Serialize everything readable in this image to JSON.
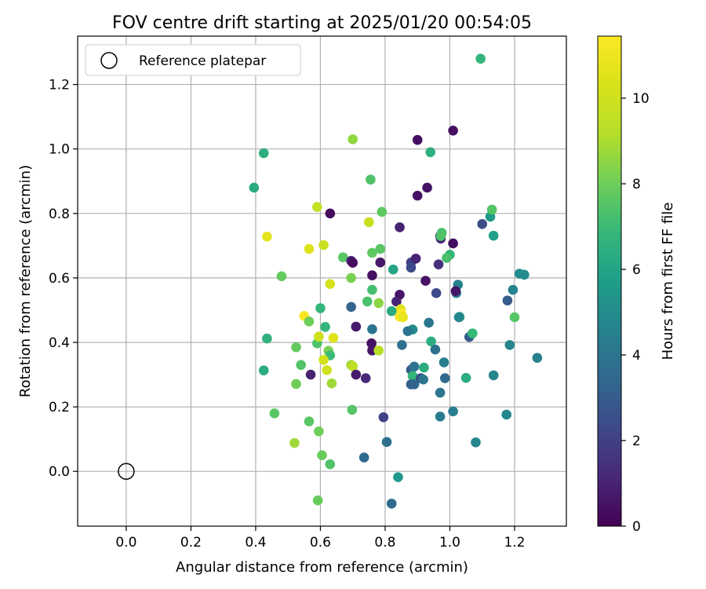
{
  "chart_data": {
    "type": "scatter",
    "title": "FOV centre drift starting at 2025/01/20 00:54:05",
    "xlabel": "Angular distance from reference (arcmin)",
    "ylabel": "Rotation from reference (arcmin)",
    "xlim": [
      -0.15,
      1.36
    ],
    "ylim": [
      -0.17,
      1.35
    ],
    "xticks": [
      0.0,
      0.2,
      0.4,
      0.6,
      0.8,
      1.0,
      1.2
    ],
    "xtick_labels": [
      "0.0",
      "0.2",
      "0.4",
      "0.6",
      "0.8",
      "1.0",
      "1.2"
    ],
    "yticks": [
      0.0,
      0.2,
      0.4,
      0.6,
      0.8,
      1.0,
      1.2
    ],
    "ytick_labels": [
      "0.0",
      "0.2",
      "0.4",
      "0.6",
      "0.8",
      "1.0",
      "1.2"
    ],
    "grid": true,
    "legend": {
      "position": "top-left",
      "entries": [
        {
          "label": "Reference platepar",
          "marker": "open-circle"
        }
      ]
    },
    "reference_point": {
      "x": 0.0,
      "y": 0.0
    },
    "colorbar": {
      "label": "Hours from first FF file",
      "colormap": "viridis",
      "min": 0,
      "max": 11.45,
      "ticks": [
        0,
        2,
        4,
        6,
        8,
        10
      ],
      "tick_labels": [
        "0",
        "2",
        "4",
        "6",
        "8",
        "10"
      ]
    },
    "points": [
      [
        1.095,
        1.28,
        6.8
      ],
      [
        0.425,
        0.987,
        6.5
      ],
      [
        0.7,
        1.03,
        8.6
      ],
      [
        0.94,
        0.99,
        6.5
      ],
      [
        0.395,
        0.88,
        6.3
      ],
      [
        0.755,
        0.905,
        7.4
      ],
      [
        0.59,
        0.82,
        9.6
      ],
      [
        0.63,
        0.8,
        0.3
      ],
      [
        0.79,
        0.805,
        7.7
      ],
      [
        1.125,
        0.79,
        5.6
      ],
      [
        1.13,
        0.812,
        7.5
      ],
      [
        0.435,
        0.728,
        10.7
      ],
      [
        0.565,
        0.69,
        10.5
      ],
      [
        0.61,
        0.702,
        9.8
      ],
      [
        0.75,
        0.773,
        9.8
      ],
      [
        1.01,
        1.057,
        0.4
      ],
      [
        0.9,
        1.028,
        0.4
      ],
      [
        0.93,
        0.88,
        0.5
      ],
      [
        0.9,
        0.855,
        0.5
      ],
      [
        0.845,
        0.757,
        1.0
      ],
      [
        0.97,
        0.73,
        0.9
      ],
      [
        0.972,
        0.722,
        1.0
      ],
      [
        1.01,
        0.707,
        0.4
      ],
      [
        0.975,
        0.74,
        7.3
      ],
      [
        0.972,
        0.73,
        7.4
      ],
      [
        1.0,
        0.672,
        6.8
      ],
      [
        0.99,
        0.662,
        7.3
      ],
      [
        1.1,
        0.767,
        2.4
      ],
      [
        1.135,
        0.731,
        5.8
      ],
      [
        0.76,
        0.678,
        7.7
      ],
      [
        0.785,
        0.69,
        7.6
      ],
      [
        0.67,
        0.664,
        7.6
      ],
      [
        0.695,
        0.653,
        1.0
      ],
      [
        0.7,
        0.647,
        0.3
      ],
      [
        0.785,
        0.648,
        0.7
      ],
      [
        0.825,
        0.626,
        6.0
      ],
      [
        0.88,
        0.648,
        2.0
      ],
      [
        0.88,
        0.632,
        2.3
      ],
      [
        0.895,
        0.66,
        1.0
      ],
      [
        0.965,
        0.642,
        1.4
      ],
      [
        0.48,
        0.605,
        7.8
      ],
      [
        0.695,
        0.6,
        8.2
      ],
      [
        0.76,
        0.608,
        0.4
      ],
      [
        0.63,
        0.581,
        10.2
      ],
      [
        0.925,
        0.591,
        0.5
      ],
      [
        0.958,
        0.553,
        2.3
      ],
      [
        1.025,
        0.579,
        4.5
      ],
      [
        1.02,
        0.553,
        4.3
      ],
      [
        1.018,
        0.559,
        0.6
      ],
      [
        1.215,
        0.613,
        5.0
      ],
      [
        1.23,
        0.61,
        4.9
      ],
      [
        1.195,
        0.563,
        4.6
      ],
      [
        0.76,
        0.563,
        7.2
      ],
      [
        0.745,
        0.527,
        7.3
      ],
      [
        0.78,
        0.522,
        8.5
      ],
      [
        0.695,
        0.51,
        3.3
      ],
      [
        0.6,
        0.506,
        6.8
      ],
      [
        0.845,
        0.548,
        0.6
      ],
      [
        0.835,
        0.527,
        1.0
      ],
      [
        0.848,
        0.503,
        10.5
      ],
      [
        0.85,
        0.49,
        11.4
      ],
      [
        0.845,
        0.48,
        11.2
      ],
      [
        0.855,
        0.478,
        10.8
      ],
      [
        0.82,
        0.497,
        6.3
      ],
      [
        1.178,
        0.53,
        3.0
      ],
      [
        1.2,
        0.478,
        7.5
      ],
      [
        1.03,
        0.479,
        5.6
      ],
      [
        1.028,
        0.478,
        4.8
      ],
      [
        0.55,
        0.482,
        11.3
      ],
      [
        0.565,
        0.465,
        8.0
      ],
      [
        0.615,
        0.448,
        6.8
      ],
      [
        0.71,
        0.449,
        0.8
      ],
      [
        0.76,
        0.441,
        4.0
      ],
      [
        0.885,
        0.44,
        5.0
      ],
      [
        0.87,
        0.435,
        4.0
      ],
      [
        0.935,
        0.461,
        4.0
      ],
      [
        0.435,
        0.412,
        6.6
      ],
      [
        0.59,
        0.397,
        7.4
      ],
      [
        0.595,
        0.418,
        10.0
      ],
      [
        0.64,
        0.414,
        10.5
      ],
      [
        0.625,
        0.374,
        8.2
      ],
      [
        0.63,
        0.36,
        7.0
      ],
      [
        0.758,
        0.397,
        0.5
      ],
      [
        0.76,
        0.375,
        0.6
      ],
      [
        0.78,
        0.375,
        9.3
      ],
      [
        0.852,
        0.392,
        3.8
      ],
      [
        0.942,
        0.403,
        6.4
      ],
      [
        0.955,
        0.378,
        3.8
      ],
      [
        1.06,
        0.417,
        3.0
      ],
      [
        1.07,
        0.428,
        6.9
      ],
      [
        1.185,
        0.392,
        4.8
      ],
      [
        0.525,
        0.385,
        7.8
      ],
      [
        0.54,
        0.33,
        7.5
      ],
      [
        0.61,
        0.346,
        10.2
      ],
      [
        0.62,
        0.314,
        10.0
      ],
      [
        0.695,
        0.33,
        8.8
      ],
      [
        0.7,
        0.326,
        9.5
      ],
      [
        0.425,
        0.313,
        6.3
      ],
      [
        0.57,
        0.3,
        1.0
      ],
      [
        0.71,
        0.3,
        0.8
      ],
      [
        0.74,
        0.289,
        1.2
      ],
      [
        0.88,
        0.315,
        3.0
      ],
      [
        0.89,
        0.325,
        4.0
      ],
      [
        0.885,
        0.296,
        6.8
      ],
      [
        0.92,
        0.322,
        6.4
      ],
      [
        0.982,
        0.338,
        4.4
      ],
      [
        0.525,
        0.271,
        8.0
      ],
      [
        0.635,
        0.273,
        8.8
      ],
      [
        0.89,
        0.27,
        3.5
      ],
      [
        0.88,
        0.27,
        3.2
      ],
      [
        0.91,
        0.289,
        2.6
      ],
      [
        0.918,
        0.285,
        4.0
      ],
      [
        0.985,
        0.289,
        3.5
      ],
      [
        1.05,
        0.29,
        6.3
      ],
      [
        1.135,
        0.298,
        4.8
      ],
      [
        1.27,
        0.352,
        4.5
      ],
      [
        0.458,
        0.18,
        7.6
      ],
      [
        0.698,
        0.191,
        7.5
      ],
      [
        0.97,
        0.244,
        4.0
      ],
      [
        1.01,
        0.186,
        4.4
      ],
      [
        0.795,
        0.168,
        2.0
      ],
      [
        0.97,
        0.17,
        4.3
      ],
      [
        1.175,
        0.176,
        4.8
      ],
      [
        0.565,
        0.155,
        7.6
      ],
      [
        0.595,
        0.124,
        8.0
      ],
      [
        0.52,
        0.088,
        8.8
      ],
      [
        0.805,
        0.091,
        3.8
      ],
      [
        1.08,
        0.09,
        4.8
      ],
      [
        0.605,
        0.05,
        7.9
      ],
      [
        0.63,
        0.022,
        7.4
      ],
      [
        0.735,
        0.043,
        3.5
      ],
      [
        0.84,
        -0.018,
        5.5
      ],
      [
        0.592,
        -0.09,
        7.9
      ],
      [
        0.82,
        -0.1,
        3.6
      ]
    ]
  }
}
